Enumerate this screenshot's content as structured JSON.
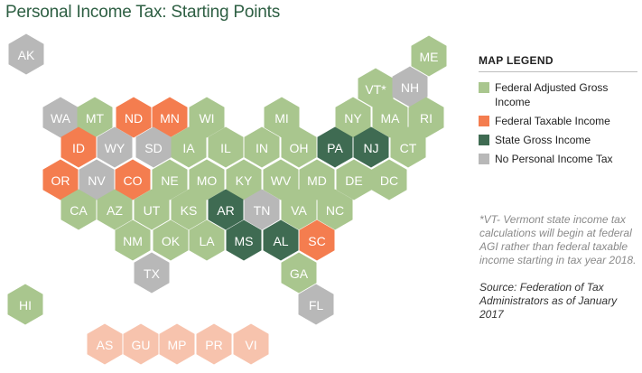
{
  "title": "Personal Income Tax: Starting Points",
  "legend": {
    "title": "MAP LEGEND",
    "items": [
      {
        "key": "fagi",
        "label": "Federal Adjusted Gross Income",
        "color": "#a9c68e"
      },
      {
        "key": "fti",
        "label": "Federal Taxable Income",
        "color": "#f47d4f"
      },
      {
        "key": "sgi",
        "label": "State Gross Income",
        "color": "#3f6b52"
      },
      {
        "key": "none",
        "label": "No Personal Income Tax",
        "color": "#b8b8b8"
      }
    ]
  },
  "territory_color": "#f7c3ad",
  "note": "*VT- Vermont state income tax calculations will begin at federal AGI rather than federal taxable income starting in tax year 2018.",
  "source": "Source: Federation of Tax Administrators as of January 2017",
  "states": [
    {
      "label": "AK",
      "category": "none"
    },
    {
      "label": "ME",
      "category": "fagi"
    },
    {
      "label": "VT*",
      "category": "fagi"
    },
    {
      "label": "NH",
      "category": "none"
    },
    {
      "label": "WA",
      "category": "none"
    },
    {
      "label": "MT",
      "category": "fagi"
    },
    {
      "label": "ND",
      "category": "fti"
    },
    {
      "label": "MN",
      "category": "fti"
    },
    {
      "label": "WI",
      "category": "fagi"
    },
    {
      "label": "MI",
      "category": "fagi"
    },
    {
      "label": "NY",
      "category": "fagi"
    },
    {
      "label": "MA",
      "category": "fagi"
    },
    {
      "label": "RI",
      "category": "fagi"
    },
    {
      "label": "ID",
      "category": "fti"
    },
    {
      "label": "WY",
      "category": "none"
    },
    {
      "label": "SD",
      "category": "none"
    },
    {
      "label": "IA",
      "category": "fagi"
    },
    {
      "label": "IL",
      "category": "fagi"
    },
    {
      "label": "IN",
      "category": "fagi"
    },
    {
      "label": "OH",
      "category": "fagi"
    },
    {
      "label": "PA",
      "category": "sgi"
    },
    {
      "label": "NJ",
      "category": "sgi"
    },
    {
      "label": "CT",
      "category": "fagi"
    },
    {
      "label": "OR",
      "category": "fti"
    },
    {
      "label": "NV",
      "category": "none"
    },
    {
      "label": "CO",
      "category": "fti"
    },
    {
      "label": "NE",
      "category": "fagi"
    },
    {
      "label": "MO",
      "category": "fagi"
    },
    {
      "label": "KY",
      "category": "fagi"
    },
    {
      "label": "WV",
      "category": "fagi"
    },
    {
      "label": "MD",
      "category": "fagi"
    },
    {
      "label": "DE",
      "category": "fagi"
    },
    {
      "label": "DC",
      "category": "fagi"
    },
    {
      "label": "CA",
      "category": "fagi"
    },
    {
      "label": "AZ",
      "category": "fagi"
    },
    {
      "label": "UT",
      "category": "fagi"
    },
    {
      "label": "KS",
      "category": "fagi"
    },
    {
      "label": "AR",
      "category": "sgi"
    },
    {
      "label": "TN",
      "category": "none"
    },
    {
      "label": "VA",
      "category": "fagi"
    },
    {
      "label": "NC",
      "category": "fagi"
    },
    {
      "label": "NM",
      "category": "fagi"
    },
    {
      "label": "OK",
      "category": "fagi"
    },
    {
      "label": "LA",
      "category": "fagi"
    },
    {
      "label": "MS",
      "category": "sgi"
    },
    {
      "label": "AL",
      "category": "sgi"
    },
    {
      "label": "SC",
      "category": "fti"
    },
    {
      "label": "TX",
      "category": "none"
    },
    {
      "label": "GA",
      "category": "fagi"
    },
    {
      "label": "HI",
      "category": "fagi"
    },
    {
      "label": "FL",
      "category": "none"
    }
  ],
  "territories": [
    "AS",
    "GU",
    "MP",
    "PR",
    "VI"
  ]
}
